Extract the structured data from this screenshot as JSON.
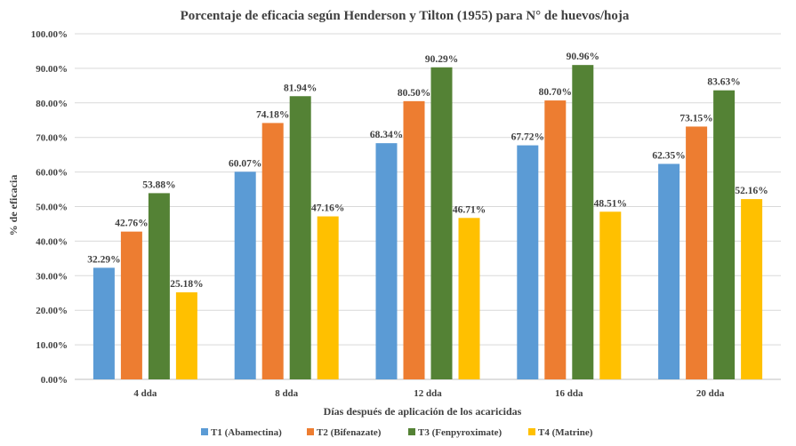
{
  "chart_data": {
    "type": "bar",
    "title": "Porcentaje de eficacia según Henderson y Tilton (1955) para N° de huevos/hoja",
    "xlabel": "Días después de aplicación de los acaricidas",
    "ylabel": "% de eficacia",
    "ylim": [
      0,
      100
    ],
    "ytick_values": [
      0,
      10,
      20,
      30,
      40,
      50,
      60,
      70,
      80,
      90,
      100
    ],
    "ytick_labels": [
      "0.00%",
      "10.00%",
      "20.00%",
      "30.00%",
      "40.00%",
      "50.00%",
      "60.00%",
      "70.00%",
      "80.00%",
      "90.00%",
      "100.00%"
    ],
    "grid": true,
    "legend_position": "bottom",
    "categories": [
      "4 dda",
      "8 dda",
      "12 dda",
      "16 dda",
      "20 dda"
    ],
    "series": [
      {
        "name": "T1 (Abamectina)",
        "color": "#5B9BD5",
        "values": [
          32.29,
          60.07,
          68.34,
          67.72,
          62.35
        ],
        "labels": [
          "32.29%",
          "60.07%",
          "68.34%",
          "67.72%",
          "62.35%"
        ]
      },
      {
        "name": "T2 (Bifenazate)",
        "color": "#ED7D31",
        "values": [
          42.76,
          74.18,
          80.5,
          80.7,
          73.15
        ],
        "labels": [
          "42.76%",
          "74.18%",
          "80.50%",
          "80.70%",
          "73.15%"
        ]
      },
      {
        "name": "T3 (Fenpyroximate)",
        "color": "#548235",
        "values": [
          53.88,
          81.94,
          90.29,
          90.96,
          83.63
        ],
        "labels": [
          "53.88%",
          "81.94%",
          "90.29%",
          "90.96%",
          "83.63%"
        ]
      },
      {
        "name": "T4 (Matrine)",
        "color": "#FFC000",
        "values": [
          25.18,
          47.16,
          46.71,
          48.51,
          52.16
        ],
        "labels": [
          "25.18%",
          "47.16%",
          "46.71%",
          "48.51%",
          "52.16%"
        ]
      }
    ]
  }
}
